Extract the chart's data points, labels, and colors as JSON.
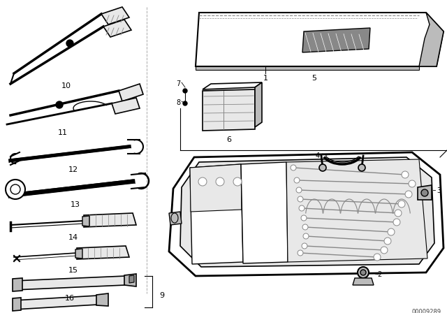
{
  "background_color": "#ffffff",
  "line_color": "#000000",
  "diagram_number": "00009289",
  "figsize": [
    6.4,
    4.48
  ],
  "dpi": 100,
  "gray_light": "#e8e8e8",
  "gray_med": "#bbbbbb",
  "gray_dark": "#888888",
  "gray_tool": "#999999"
}
